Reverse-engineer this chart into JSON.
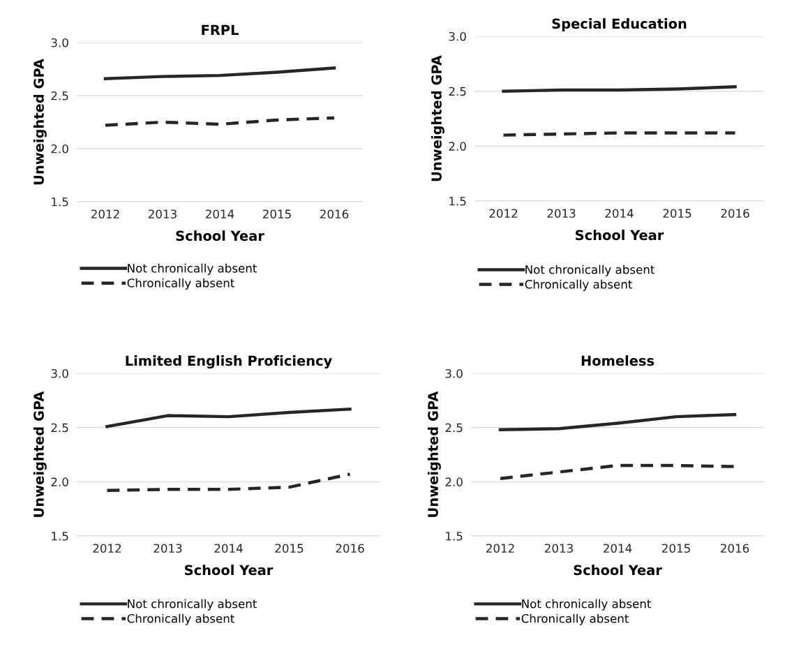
{
  "chart_data": [
    {
      "type": "line",
      "title": "FRPL",
      "xlabel": "School Year",
      "ylabel": "Unweighted GPA",
      "categories": [
        "2012",
        "2013",
        "2014",
        "2015",
        "2016"
      ],
      "ylim": [
        1.5,
        3.0
      ],
      "yticks": [
        {
          "value": 1.5,
          "label": "1.5"
        },
        {
          "value": 2.0,
          "label": "2.0"
        },
        {
          "value": 2.5,
          "label": "2.5"
        },
        {
          "value": 3.0,
          "label": "3.0"
        }
      ],
      "grid": "y",
      "legend": "bottom",
      "marker": "none",
      "series": [
        {
          "name": "Not chronically absent",
          "color": "#262626",
          "line_style": "solid",
          "values": [
            2.66,
            2.68,
            2.69,
            2.72,
            2.76
          ]
        },
        {
          "name": "Chronically absent",
          "color": "#262626",
          "line_style": "dashed",
          "values": [
            2.22,
            2.25,
            2.23,
            2.27,
            2.29
          ]
        }
      ]
    },
    {
      "type": "line",
      "title": "Special Education",
      "xlabel": "School Year",
      "ylabel": "Unweighted GPA",
      "categories": [
        "2012",
        "2013",
        "2014",
        "2015",
        "2016"
      ],
      "ylim": [
        1.5,
        3.0
      ],
      "yticks": [
        {
          "value": 1.5,
          "label": "1.5"
        },
        {
          "value": 2.0,
          "label": "2.0"
        },
        {
          "value": 2.5,
          "label": "2.5"
        },
        {
          "value": 3.0,
          "label": "3.0"
        }
      ],
      "grid": "y",
      "legend": "bottom",
      "marker": "none",
      "series": [
        {
          "name": "Not chronically absent",
          "color": "#262626",
          "line_style": "solid",
          "values": [
            2.5,
            2.51,
            2.51,
            2.52,
            2.54
          ]
        },
        {
          "name": "Chronically absent",
          "color": "#262626",
          "line_style": "dashed",
          "values": [
            2.1,
            2.11,
            2.12,
            2.12,
            2.12
          ]
        }
      ]
    },
    {
      "type": "line",
      "title": "Limited English Proficiency",
      "xlabel": "School Year",
      "ylabel": "Unweighted GPA",
      "categories": [
        "2012",
        "2013",
        "2014",
        "2015",
        "2016"
      ],
      "ylim": [
        1.5,
        3.0
      ],
      "yticks": [
        {
          "value": 1.5,
          "label": "1.5"
        },
        {
          "value": 2.0,
          "label": "2.0"
        },
        {
          "value": 2.5,
          "label": "2.5"
        },
        {
          "value": 3.0,
          "label": "3.0"
        }
      ],
      "grid": "y",
      "legend": "bottom",
      "marker": "none",
      "series": [
        {
          "name": "Not chronically absent",
          "color": "#262626",
          "line_style": "solid",
          "values": [
            2.51,
            2.61,
            2.6,
            2.64,
            2.67
          ]
        },
        {
          "name": "Chronically absent",
          "color": "#262626",
          "line_style": "dashed",
          "values": [
            1.92,
            1.93,
            1.93,
            1.95,
            2.07
          ]
        }
      ]
    },
    {
      "type": "line",
      "title": "Homeless",
      "xlabel": "School Year",
      "ylabel": "Unweighted GPA",
      "categories": [
        "2012",
        "2013",
        "2014",
        "2015",
        "2016"
      ],
      "ylim": [
        1.5,
        3.0
      ],
      "yticks": [
        {
          "value": 1.5,
          "label": "1.5"
        },
        {
          "value": 2.0,
          "label": "2.0"
        },
        {
          "value": 2.5,
          "label": "2.5"
        },
        {
          "value": 3.0,
          "label": "3.0"
        }
      ],
      "grid": "y",
      "legend": "bottom",
      "marker": "none",
      "series": [
        {
          "name": "Not chronically absent",
          "color": "#262626",
          "line_style": "solid",
          "values": [
            2.48,
            2.49,
            2.54,
            2.6,
            2.62
          ]
        },
        {
          "name": "Chronically absent",
          "color": "#262626",
          "line_style": "dashed",
          "values": [
            2.03,
            2.09,
            2.15,
            2.15,
            2.14
          ]
        }
      ]
    }
  ]
}
